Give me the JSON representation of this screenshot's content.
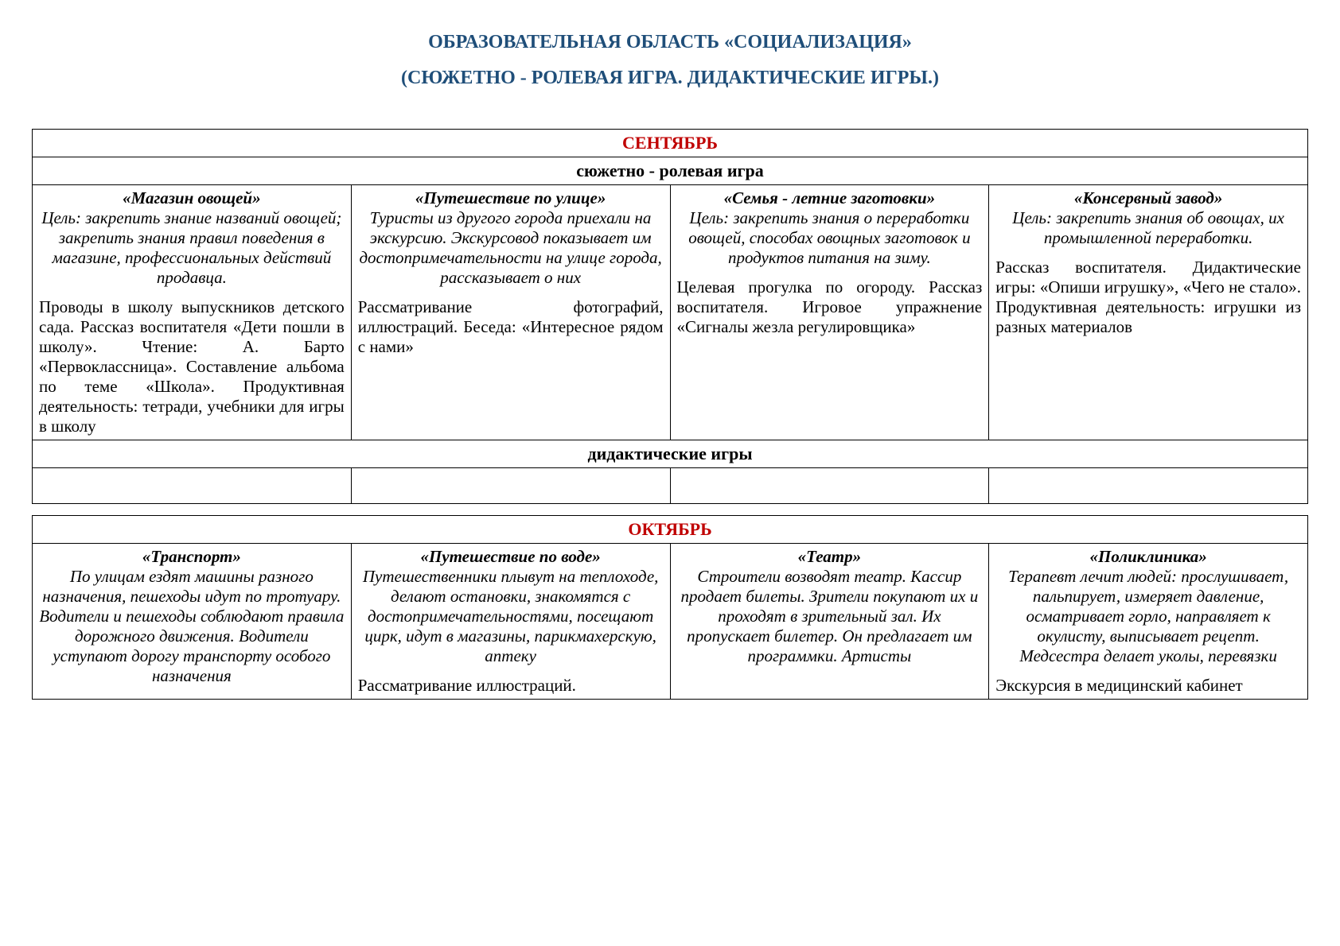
{
  "titles": {
    "line1": "ОБРАЗОВАТЕЛЬНАЯ ОБЛАСТЬ  «СОЦИАЛИЗАЦИЯ»",
    "line2": "(СЮЖЕТНО - РОЛЕВАЯ ИГРА. ДИДАКТИЧЕСКИЕ ИГРЫ.)"
  },
  "months": {
    "september": {
      "name": "СЕНТЯБРЬ",
      "section1": "сюжетно - ролевая игра",
      "section2": "дидактические игры",
      "cells": [
        {
          "title": "«Магазин овощей»",
          "goal": "Цель: закрепить знание названий овощей; закрепить знания правил поведения в магазине, профессиональных действий продавца.",
          "body": "Проводы в школу выпускников детского сада. Рассказ воспитателя «Дети пошли в школу». Чтение: А. Барто «Первоклассница». Составление альбома по теме «Школа». Продуктивная деятельность: тетради,\nучебники для игры в школу"
        },
        {
          "title": "«Путешествие по улице»",
          "goal": "Туристы из другого города приехали\nна экскурсию. Экскурсовод показывает\nим достопримечательности на улице\nгорода, рассказывает о них",
          "body": "Рассматривание фотографий, иллюстраций. Беседа: «Интересное рядом с нами»"
        },
        {
          "title": "«Семья - летние заготовки»",
          "goal": "Цель: закрепить знания о переработки овощей, способах овощных заготовок и продуктов питания на зиму.",
          "body": "Целевая прогулка по огороду. Рассказ воспитателя. Игровое упражнение «Сигналы жезла регулировщика»"
        },
        {
          "title": "«Консервный завод»",
          "goal": "Цель: закрепить знания об овощах, их промышленной переработки.",
          "body": "Рассказ воспитателя. Дидактические игры: «Опиши игрушку», «Чего не стало». Продуктивная деятельность: игрушки из разных материалов"
        }
      ]
    },
    "october": {
      "name": "ОКТЯБРЬ",
      "cells": [
        {
          "title": "«Транспорт»",
          "goal": "По улицам ездят машины разного назначения, пешеходы идут по тротуару. Водители и пешеходы соблюдают правила дорожного движения. Водители уступают дорогу транспорту особого назначения",
          "body": ""
        },
        {
          "title": "«Путешествие по воде»",
          "goal": "Путешественники плывут на теплоходе, делают остановки, знакомятся с достопримечательностями, посещают цирк, идут в магазины, парикмахерскую, аптеку",
          "body": "Рассматривание иллюстраций."
        },
        {
          "title": "«Театр»",
          "goal": "Строители возводят театр. Кассир\nпродает билеты. Зрители покупают\nих и проходят в зрительный зал. Их пропускает билетер. Он предлагает\nим программки. Артисты",
          "body": ""
        },
        {
          "title": "«Поликлиника»",
          "goal": "Терапевт лечит людей: прослушивает,\nпальпирует, измеряет давление, осматривает горло, направляет к окулисту, выписывает рецепт. Медсестра делает уколы, перевязки",
          "body": "Экскурсия в медицинский кабинет"
        }
      ]
    }
  }
}
